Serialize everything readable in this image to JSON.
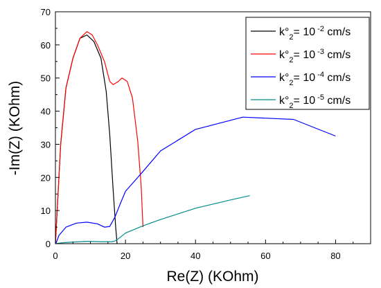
{
  "chart_data": {
    "type": "line",
    "xlabel": "Re(Z) (KOhm)",
    "ylabel": "-Im(Z) (KOhm)",
    "xlim": [
      0,
      90
    ],
    "ylim": [
      0,
      70
    ],
    "xticks": [
      0,
      20,
      40,
      60,
      80
    ],
    "yticks": [
      0,
      10,
      20,
      30,
      40,
      50,
      60,
      70
    ],
    "grid": false,
    "legend_position": "top-right",
    "series": [
      {
        "name": "k°2= 10 -2 cm/s",
        "legend": {
          "prefix": "k°",
          "sub": "2",
          "mid": "= 10",
          "sup": " -2",
          "suffix": " cm/s"
        },
        "color": "#000000",
        "points": [
          [
            0,
            0
          ],
          [
            1.5,
            30
          ],
          [
            3,
            47
          ],
          [
            5,
            56
          ],
          [
            7,
            62
          ],
          [
            9,
            63
          ],
          [
            11,
            61
          ],
          [
            13,
            56
          ],
          [
            14.5,
            46
          ],
          [
            15.5,
            33
          ],
          [
            16.5,
            16
          ],
          [
            17.2,
            5
          ],
          [
            17.6,
            0
          ]
        ]
      },
      {
        "name": "k°2= 10 -3 cm/s",
        "legend": {
          "prefix": "k°",
          "sub": "2",
          "mid": "= 10",
          "sup": " -3",
          "suffix": " cm/s"
        },
        "color": "#ff0000",
        "points": [
          [
            0,
            0
          ],
          [
            1.5,
            30
          ],
          [
            3,
            47
          ],
          [
            5,
            56
          ],
          [
            7,
            62
          ],
          [
            9,
            64
          ],
          [
            10.5,
            63
          ],
          [
            12,
            60
          ],
          [
            14,
            55
          ],
          [
            15.5,
            49
          ],
          [
            16.5,
            48
          ],
          [
            18,
            49
          ],
          [
            19,
            50
          ],
          [
            20.5,
            49
          ],
          [
            22,
            44
          ],
          [
            23.5,
            31
          ],
          [
            24.5,
            17
          ],
          [
            25,
            5
          ]
        ]
      },
      {
        "name": "k°2= 10 -4 cm/s",
        "legend": {
          "prefix": "k°",
          "sub": "2",
          "mid": "= 10",
          "sup": " -4",
          "suffix": " cm/s"
        },
        "color": "#0000ff",
        "points": [
          [
            0.2,
            0.2
          ],
          [
            1,
            2.5
          ],
          [
            3,
            5
          ],
          [
            6,
            6.2
          ],
          [
            9,
            6.5
          ],
          [
            12,
            6
          ],
          [
            14,
            5
          ],
          [
            15.5,
            5.2
          ],
          [
            17,
            8
          ],
          [
            18.5,
            12
          ],
          [
            20,
            15.8
          ],
          [
            25,
            21.8
          ],
          [
            30,
            28
          ],
          [
            40,
            34.5
          ],
          [
            53.5,
            38.2
          ],
          [
            68,
            37.5
          ],
          [
            80,
            32.5
          ]
        ]
      },
      {
        "name": "k°2= 10 -5 cm/s",
        "legend": {
          "prefix": "k°",
          "sub": "2",
          "mid": "= 10",
          "sup": " -5",
          "suffix": " cm/s"
        },
        "color": "#008b8b",
        "points": [
          [
            0,
            0
          ],
          [
            2,
            0.3
          ],
          [
            5,
            0.5
          ],
          [
            9,
            0.7
          ],
          [
            13,
            0.6
          ],
          [
            16,
            0.6
          ],
          [
            17,
            0.8
          ],
          [
            18,
            1.5
          ],
          [
            20,
            3.2
          ],
          [
            25,
            5.4
          ],
          [
            30,
            7.3
          ],
          [
            40,
            10.7
          ],
          [
            50,
            13.2
          ],
          [
            55.5,
            14.5
          ]
        ]
      }
    ]
  }
}
